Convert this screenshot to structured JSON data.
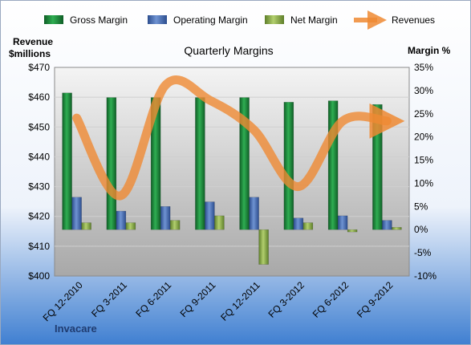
{
  "chart_data": {
    "type": "bar",
    "title": "Quarterly Margins",
    "company": "Invacare",
    "y_left_label": [
      "Revenue",
      "$millions"
    ],
    "y_right_label": "Margin %",
    "categories": [
      "FQ 12-2010",
      "FQ 3-2011",
      "FQ 6-2011",
      "FQ 9-2011",
      "FQ 12-2011",
      "FQ 3-2012",
      "FQ 6-2012",
      "FQ 9-2012"
    ],
    "y_left_range": [
      400,
      470
    ],
    "y_left_ticks": [
      "$400",
      "$410",
      "$420",
      "$430",
      "$440",
      "$450",
      "$460",
      "$470"
    ],
    "y_right_range": [
      -10,
      35
    ],
    "y_right_ticks": [
      "-10%",
      "-5%",
      "0%",
      "5%",
      "10%",
      "15%",
      "20%",
      "25%",
      "30%",
      "35%"
    ],
    "legend": [
      "Gross Margin",
      "Operating Margin",
      "Net Margin",
      "Revenues"
    ],
    "series": [
      {
        "name": "Gross Margin",
        "axis": "right",
        "kind": "bar",
        "color": "#1e8a3c",
        "values": [
          29.5,
          28.5,
          28.5,
          28.5,
          28.5,
          27.5,
          27.8,
          27.0
        ]
      },
      {
        "name": "Operating Margin",
        "axis": "right",
        "kind": "bar",
        "color": "#4a6fb5",
        "values": [
          7.0,
          4.0,
          5.0,
          6.0,
          7.0,
          2.5,
          3.0,
          2.0
        ]
      },
      {
        "name": "Net Margin",
        "axis": "right",
        "kind": "bar",
        "color": "#8cb04a",
        "values": [
          1.5,
          1.5,
          2.0,
          3.0,
          -7.5,
          1.5,
          -0.5,
          0.5
        ]
      },
      {
        "name": "Revenues",
        "axis": "left",
        "kind": "line",
        "color": "#ef8a33",
        "values": [
          453,
          427,
          464,
          459,
          449,
          430,
          452,
          452
        ]
      }
    ]
  }
}
